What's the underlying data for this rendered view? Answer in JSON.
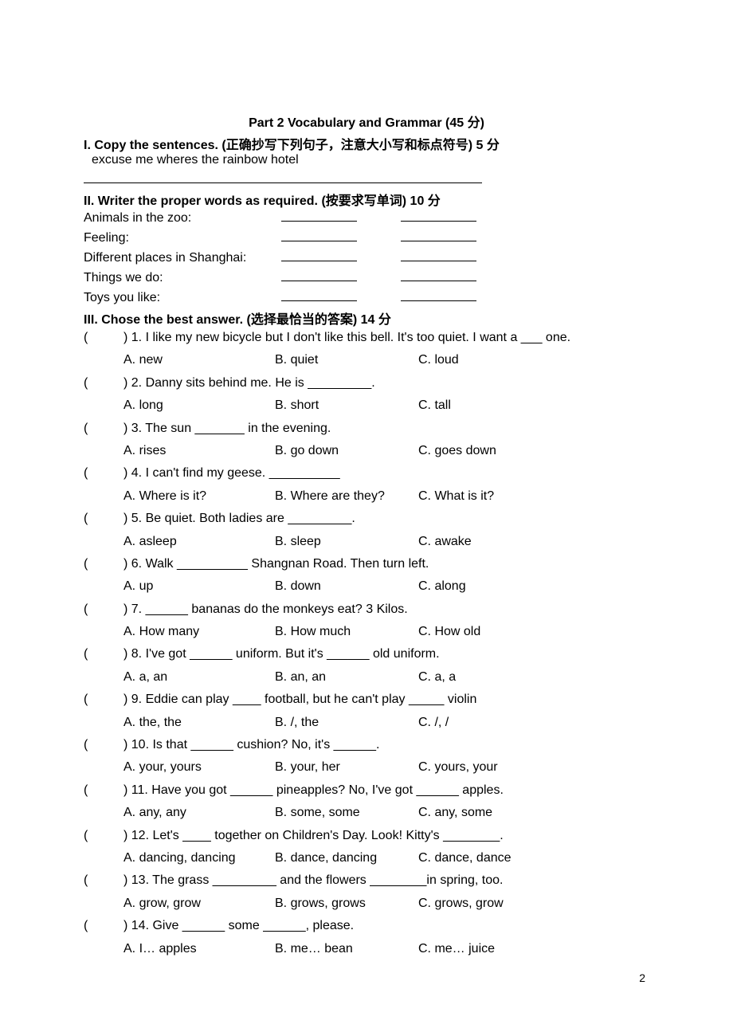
{
  "partTitle": "Part 2 Vocabulary and Grammar   (45 分)",
  "section1": {
    "title": "I. Copy the sentences. (正确抄写下列句子，注意大小写和标点符号) 5 分",
    "sentence": "excuse me   wheres   the   rainbow   hotel"
  },
  "section2": {
    "title": "II. Writer the proper words as required. (按要求写单词)   10 分",
    "rows": [
      "Animals in the zoo:",
      "Feeling:",
      "Different places in Shanghai:",
      "Things we do:",
      "Toys you like:"
    ]
  },
  "section3": {
    "title": "III. Chose the best answer. (选择最恰当的答案) 14 分",
    "questions": [
      {
        "q": ") 1. I like my new bicycle but I don't like this bell. It's too quiet. I want a ___ one.",
        "a": "A. new",
        "b": "B. quiet",
        "c": "C. loud"
      },
      {
        "q": ") 2. Danny sits behind me. He is _________.",
        "a": "A. long",
        "b": "B. short",
        "c": "C. tall"
      },
      {
        "q": ") 3. The sun _______ in the evening.",
        "a": "A. rises",
        "b": "B. go down",
        "c": "C. goes down"
      },
      {
        "q": ") 4. I can't find my geese. __________",
        "a": "A. Where is it?",
        "b": "B. Where are they?",
        "c": "C. What is it?"
      },
      {
        "q": ") 5. Be quiet. Both ladies are _________.",
        "a": "A. asleep",
        "b": "B. sleep",
        "c": "C. awake"
      },
      {
        "q": ") 6. Walk __________ Shangnan Road. Then turn left.",
        "a": "A. up",
        "b": "B. down",
        "c": "C. along"
      },
      {
        "q": ") 7. ______ bananas do the monkeys eat? 3 Kilos.",
        "a": "A. How many",
        "b": "B. How much",
        "c": "C. How old"
      },
      {
        "q": ") 8. I've got ______ uniform. But it's ______ old uniform.",
        "a": "A. a, an",
        "b": "B. an, an",
        "c": "C. a, a"
      },
      {
        "q": ") 9. Eddie can play ____ football, but he can't play _____ violin",
        "a": "A. the, the",
        "b": "B. /, the",
        "c": "C. /, /"
      },
      {
        "q": ") 10. Is that ______ cushion? No, it's ______.",
        "a": "A. your, yours",
        "b": "B. your, her",
        "c": "C. yours, your"
      },
      {
        "q": ") 11. Have you got ______ pineapples? No, I've got ______ apples.",
        "a": "A. any, any",
        "b": "B. some, some",
        "c": "C. any, some"
      },
      {
        "q": ") 12. Let's ____ together on Children's Day. Look! Kitty's ________.",
        "a": "A. dancing, dancing",
        "b": "B.  dance, dancing",
        "c": "C. dance, dance"
      },
      {
        "q": ") 13. The grass _________ and the flowers ________in spring, too.",
        "a": "A. grow, grow",
        "b": "B. grows, grows",
        "c": "C. grows, grow"
      },
      {
        "q": ") 14. Give ______ some ______, please.",
        "a": "A. I… apples",
        "b": "B. me… bean",
        "c": "C. me… juice"
      }
    ]
  },
  "pageNumber": "2"
}
